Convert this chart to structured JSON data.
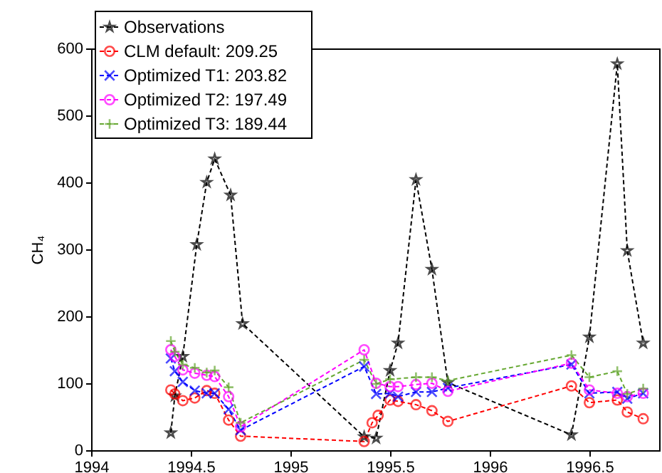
{
  "chart_data": {
    "type": "line",
    "ylabel": "CH₄",
    "xlim": [
      1994,
      1996.85
    ],
    "xticks": [
      1994,
      1994.5,
      1995,
      1995.5,
      1996,
      1996.5
    ],
    "ylim": [
      0,
      600
    ],
    "yticks": [
      0,
      100,
      200,
      300,
      400,
      500,
      600
    ],
    "grid": false,
    "legend": "top left",
    "line_style": "dashed",
    "series": [
      {
        "name": "Observations",
        "color": "#000000",
        "marker": "star",
        "x": [
          1994.4,
          1994.42,
          1994.46,
          1994.53,
          1994.58,
          1994.62,
          1994.7,
          1994.76,
          1995.37,
          1995.43,
          1995.5,
          1995.54,
          1995.63,
          1995.71,
          1995.79,
          1996.41,
          1996.5,
          1996.64,
          1996.69,
          1996.77
        ],
        "values": [
          26,
          81,
          140,
          307,
          400,
          435,
          381,
          189,
          20,
          18,
          119,
          160,
          404,
          270,
          101,
          23,
          169,
          577,
          298,
          160
        ]
      },
      {
        "name": "CLM default: 209.25",
        "color": "#ff0000",
        "marker": "circle",
        "x": [
          1994.4,
          1994.42,
          1994.46,
          1994.52,
          1994.58,
          1994.62,
          1994.69,
          1994.75,
          1995.37,
          1995.41,
          1995.44,
          1995.5,
          1995.54,
          1995.63,
          1995.71,
          1995.79,
          1996.41,
          1996.5,
          1996.64,
          1996.69,
          1996.77
        ],
        "values": [
          90,
          84,
          74,
          78,
          89,
          85,
          45,
          21,
          13,
          41,
          52,
          75,
          73,
          68,
          59,
          43,
          96,
          71,
          75,
          57,
          47
        ]
      },
      {
        "name": "Optimized T1: 203.82",
        "color": "#0000ff",
        "marker": "cross",
        "x": [
          1994.4,
          1994.42,
          1994.46,
          1994.52,
          1994.58,
          1994.62,
          1994.69,
          1994.75,
          1995.37,
          1995.43,
          1995.5,
          1995.54,
          1995.63,
          1995.71,
          1995.79,
          1996.41,
          1996.5,
          1996.64,
          1996.69,
          1996.77
        ],
        "values": [
          137,
          118,
          102,
          89,
          85,
          85,
          61,
          30,
          125,
          84,
          85,
          80,
          87,
          87,
          93,
          128,
          85,
          87,
          77,
          85
        ]
      },
      {
        "name": "Optimized T2: 197.49",
        "color": "#ff00ff",
        "marker": "circle",
        "x": [
          1994.4,
          1994.42,
          1994.46,
          1994.52,
          1994.58,
          1994.62,
          1994.69,
          1994.75,
          1995.37,
          1995.43,
          1995.5,
          1995.54,
          1995.63,
          1995.71,
          1995.79,
          1996.41,
          1996.5,
          1996.64,
          1996.69,
          1996.77
        ],
        "values": [
          150,
          140,
          120,
          115,
          112,
          110,
          80,
          35,
          150,
          100,
          95,
          95,
          98,
          100,
          88,
          130,
          90,
          85,
          80,
          85
        ]
      },
      {
        "name": "Optimized T3: 189.44",
        "color": "#66a832",
        "marker": "plus",
        "x": [
          1994.4,
          1994.42,
          1994.46,
          1994.52,
          1994.58,
          1994.62,
          1994.69,
          1994.75,
          1995.37,
          1995.43,
          1995.5,
          1995.63,
          1995.71,
          1995.79,
          1996.41,
          1996.5,
          1996.64,
          1996.69,
          1996.77
        ],
        "values": [
          163,
          147,
          128,
          123,
          116,
          119,
          94,
          41,
          135,
          99,
          106,
          109,
          109,
          104,
          142,
          109,
          118,
          84,
          92
        ]
      }
    ]
  }
}
